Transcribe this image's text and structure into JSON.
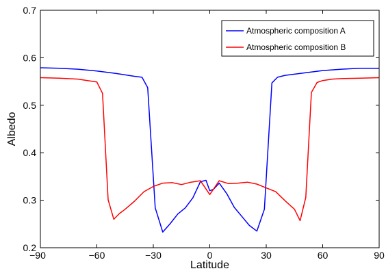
{
  "chart_data": {
    "type": "line",
    "title": "",
    "xlabel": "Latitude",
    "ylabel": "Albedo",
    "xlim": [
      -90,
      90
    ],
    "ylim": [
      0.2,
      0.7
    ],
    "xticks": [
      -90,
      -60,
      -30,
      0,
      30,
      60,
      90
    ],
    "yticks": [
      0.2,
      0.3,
      0.4,
      0.5,
      0.6,
      0.7
    ],
    "xtick_labels": [
      "−90",
      "−60",
      "−30",
      "0",
      "30",
      "60",
      "90"
    ],
    "ytick_labels": [
      "0.2",
      "0.3",
      "0.4",
      "0.5",
      "0.6",
      "0.7"
    ],
    "grid": false,
    "legend_position": "top-right",
    "series": [
      {
        "name": "Atmospheric composition A",
        "color": "#0000ff",
        "x": [
          -90,
          -80,
          -70,
          -60,
          -50,
          -40,
          -36,
          -33,
          -29,
          -25,
          -21,
          -17,
          -13,
          -9,
          -5,
          -2,
          0,
          2,
          5,
          9,
          13,
          17,
          21,
          25,
          29,
          33,
          36,
          40,
          50,
          60,
          70,
          80,
          90
        ],
        "y": [
          0.579,
          0.578,
          0.576,
          0.572,
          0.567,
          0.561,
          0.559,
          0.537,
          0.284,
          0.233,
          0.251,
          0.271,
          0.284,
          0.305,
          0.339,
          0.342,
          0.32,
          0.323,
          0.336,
          0.314,
          0.285,
          0.266,
          0.247,
          0.235,
          0.281,
          0.547,
          0.559,
          0.563,
          0.568,
          0.573,
          0.576,
          0.578,
          0.578
        ]
      },
      {
        "name": "Atmospheric composition B",
        "color": "#ff0000",
        "x": [
          -90,
          -80,
          -70,
          -65,
          -60,
          -57,
          -54,
          -51,
          -48,
          -45,
          -40,
          -35,
          -30,
          -25,
          -20,
          -15,
          -10,
          -5,
          0,
          5,
          10,
          15,
          20,
          25,
          30,
          35,
          40,
          45,
          48,
          51,
          54,
          57,
          60,
          65,
          70,
          80,
          90
        ],
        "y": [
          0.558,
          0.557,
          0.555,
          0.552,
          0.549,
          0.525,
          0.301,
          0.26,
          0.272,
          0.281,
          0.298,
          0.318,
          0.329,
          0.336,
          0.337,
          0.333,
          0.338,
          0.341,
          0.312,
          0.341,
          0.335,
          0.336,
          0.338,
          0.334,
          0.326,
          0.318,
          0.299,
          0.281,
          0.257,
          0.306,
          0.527,
          0.548,
          0.552,
          0.555,
          0.556,
          0.557,
          0.558
        ]
      }
    ]
  }
}
